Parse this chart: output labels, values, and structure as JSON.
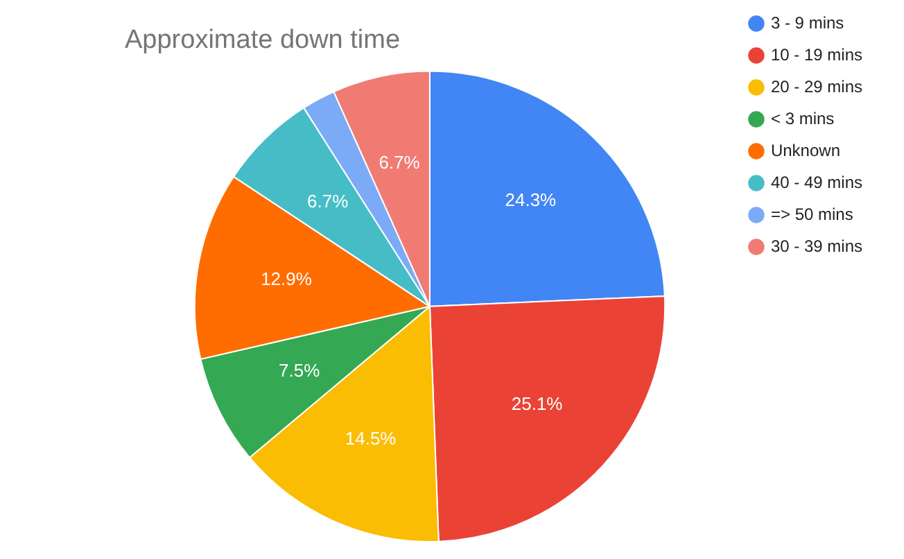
{
  "chart_data": {
    "type": "pie",
    "title": "Approximate down time",
    "categories": [
      "3 - 9 mins",
      "10 - 19 mins",
      "20 - 29 mins",
      "< 3 mins",
      "Unknown",
      "40 - 49 mins",
      "=> 50 mins",
      "30 - 39 mins"
    ],
    "values": [
      24.3,
      25.1,
      14.5,
      7.5,
      12.9,
      6.7,
      2.3,
      6.7
    ],
    "value_labels": [
      "24.3%",
      "25.1%",
      "14.5%",
      "7.5%",
      "12.9%",
      "6.7%",
      null,
      "6.7%"
    ],
    "colors": [
      "#4285f4",
      "#ea4335",
      "#fbbc04",
      "#34a853",
      "#ff6d01",
      "#46bdc6",
      "#7baaf7",
      "#f07b72"
    ],
    "legend": "right"
  }
}
